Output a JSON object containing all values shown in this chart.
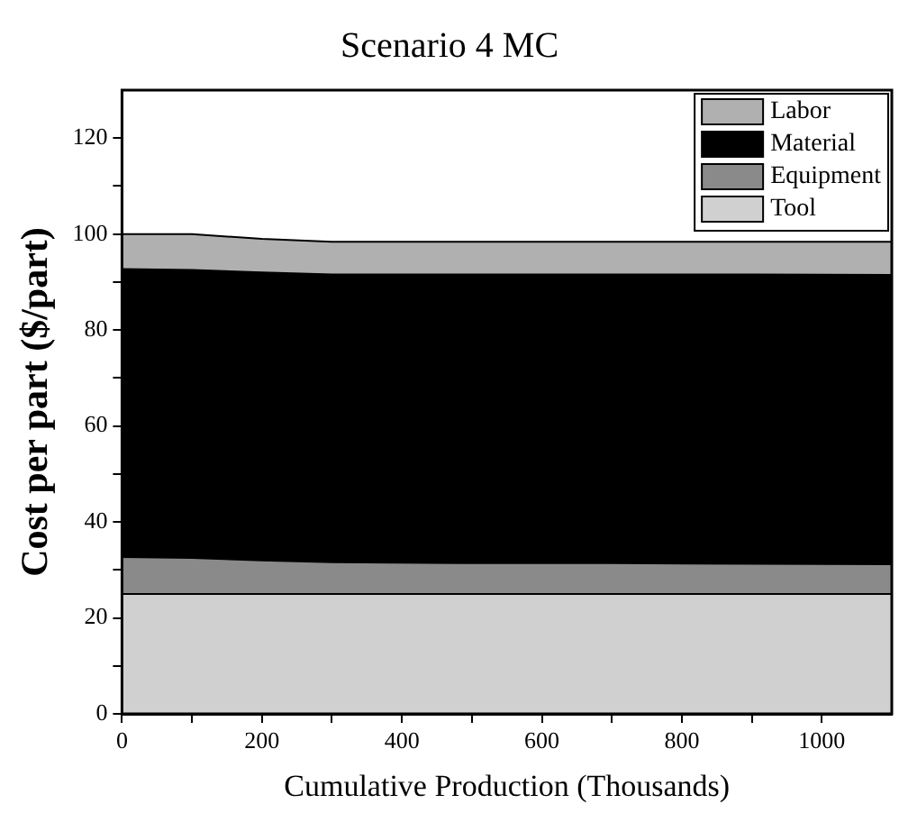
{
  "chart_data": {
    "type": "area",
    "title": "Scenario 4 MC",
    "xlabel": "Cumulative Production (Thousands)",
    "ylabel": "Cost per part ($/part)",
    "x": [
      0,
      100,
      200,
      300,
      500,
      700,
      900,
      1100
    ],
    "series": [
      {
        "name": "Tool",
        "color": "#d0d0d0",
        "values": [
          25,
          25,
          25,
          25,
          25,
          25,
          25,
          25
        ]
      },
      {
        "name": "Equipment",
        "color": "#8a8a8a",
        "values": [
          7.7,
          7.5,
          7,
          6.6,
          6.4,
          6.4,
          6.3,
          6.2
        ]
      },
      {
        "name": "Material",
        "color": "#000000",
        "values": [
          60,
          60,
          60,
          60,
          60.2,
          60.2,
          60.3,
          60.3
        ]
      },
      {
        "name": "Labor",
        "color": "#b0b0b0",
        "values": [
          7.3,
          7.5,
          7,
          6.8,
          6.8,
          6.8,
          6.8,
          6.9
        ]
      }
    ],
    "stacked": true,
    "legend": "top right",
    "grid": false,
    "xlim": [
      0,
      1100
    ],
    "xticks": [
      0,
      {
        "value": 100,
        "label": null
      },
      200,
      {
        "value": 300,
        "label": null
      },
      400,
      {
        "value": 500,
        "label": null
      },
      600,
      {
        "value": 700,
        "label": null
      },
      800,
      {
        "value": 900,
        "label": null
      },
      1000
    ],
    "ylim": [
      0,
      130
    ],
    "yticks": [
      0,
      {
        "value": 10,
        "label": null
      },
      20,
      {
        "value": 30,
        "label": null
      },
      40,
      {
        "value": 50,
        "label": null
      },
      60,
      {
        "value": 70,
        "label": null
      },
      80,
      {
        "value": 90,
        "label": null
      },
      100,
      {
        "value": 110,
        "label": null
      },
      120
    ]
  }
}
